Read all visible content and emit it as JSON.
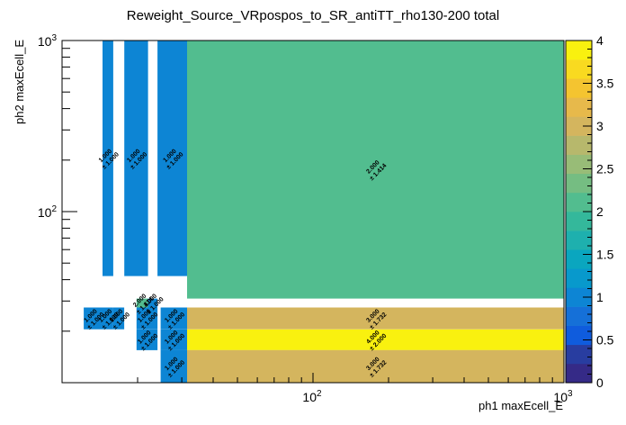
{
  "chart_data": {
    "type": "heatmap",
    "title": "Reweight_Source_VRpospos_to_SR_antiTT_rho130-200 total",
    "xlabel": "ph1 maxEcell_E",
    "ylabel": "ph2 maxEcell_E",
    "x_scale": "log",
    "y_scale": "log",
    "xlim": [
      10,
      1000
    ],
    "ylim": [
      10,
      1000
    ],
    "x_major_ticks": [
      {
        "value": 100,
        "base": "10",
        "exp": "2"
      },
      {
        "value": 1000,
        "base": "10",
        "exp": "3"
      }
    ],
    "y_major_ticks": [
      {
        "value": 100,
        "base": "10",
        "exp": "2"
      },
      {
        "value": 1000,
        "base": "10",
        "exp": "3"
      }
    ],
    "colorbar": {
      "min": 0,
      "max": 4,
      "ticks": [
        "0",
        "0.5",
        "1",
        "1.5",
        "2",
        "2.5",
        "3",
        "3.5",
        "4"
      ],
      "palette": [
        "#352a87",
        "#283da0",
        "#0f5cdd",
        "#1570d8",
        "#0d85d4",
        "#0899cc",
        "#0aa6bf",
        "#1eb0ae",
        "#34b89b",
        "#52bd8f",
        "#75bd82",
        "#98bc77",
        "#b7b86c",
        "#d4b55e",
        "#e7b94b",
        "#f4c430",
        "#f9da20",
        "#f9f10f"
      ]
    },
    "cells": [
      {
        "x": [
          14.5,
          16.0
        ],
        "y": [
          42,
          1000
        ],
        "value": 1.0,
        "label": "1.000",
        "error": "± 1.000"
      },
      {
        "x": [
          17.7,
          22.0
        ],
        "y": [
          42,
          1000
        ],
        "value": 1.0,
        "label": "1.000",
        "error": "± 1.000"
      },
      {
        "x": [
          24.0,
          31.5
        ],
        "y": [
          42,
          1000
        ],
        "value": 1.0,
        "label": "1.000",
        "error": "± 1.000"
      },
      {
        "x": [
          31.5,
          1000
        ],
        "y": [
          31,
          1000
        ],
        "value": 2.0,
        "label": "2.000",
        "error": "± 1.414"
      },
      {
        "x": [
          12.2,
          14.5
        ],
        "y": [
          20.5,
          27.5
        ],
        "value": 1.0,
        "label": "1.000",
        "error": "± 1.000"
      },
      {
        "x": [
          14.5,
          16.0
        ],
        "y": [
          20.5,
          27.5
        ],
        "value": 1.0,
        "label": "1.000",
        "error": "± 1.000"
      },
      {
        "x": [
          16.0,
          17.7
        ],
        "y": [
          20.5,
          27.5
        ],
        "value": 1.0,
        "label": "1.000",
        "error": "± 1.000"
      },
      {
        "x": [
          19.8,
          22.0
        ],
        "y": [
          27.5,
          31.0
        ],
        "value": 2.0,
        "label": "2.000",
        "error": "± 1.414"
      },
      {
        "x": [
          22.0,
          24.0
        ],
        "y": [
          27.5,
          31.0
        ],
        "value": 1.0,
        "label": "1.000",
        "error": "± 1.000"
      },
      {
        "x": [
          19.8,
          24.0
        ],
        "y": [
          20.5,
          27.5
        ],
        "value": 1.0,
        "label": "1.000",
        "error": "± 1.000"
      },
      {
        "x": [
          24.7,
          31.5
        ],
        "y": [
          20.5,
          27.5
        ],
        "value": 1.0,
        "label": "1.000",
        "error": "± 1.000"
      },
      {
        "x": [
          19.8,
          24.0
        ],
        "y": [
          15.5,
          20.5
        ],
        "value": 1.0,
        "label": "1.000",
        "error": "± 1.000"
      },
      {
        "x": [
          24.7,
          31.5
        ],
        "y": [
          15.5,
          20.5
        ],
        "value": 1.0,
        "label": "1.000",
        "error": "± 1.000"
      },
      {
        "x": [
          24.7,
          31.5
        ],
        "y": [
          10,
          15.5
        ],
        "value": 1.0,
        "label": "1.000",
        "error": "± 1.000"
      },
      {
        "x": [
          31.5,
          1000
        ],
        "y": [
          20.5,
          27.5
        ],
        "value": 3.0,
        "label": "3.000",
        "error": "± 1.732"
      },
      {
        "x": [
          31.5,
          1000
        ],
        "y": [
          15.5,
          20.5
        ],
        "value": 4.0,
        "label": "4.000",
        "error": "± 2.000"
      },
      {
        "x": [
          31.5,
          1000
        ],
        "y": [
          10,
          15.5
        ],
        "value": 3.0,
        "label": "3.000",
        "error": "± 1.732"
      }
    ]
  }
}
